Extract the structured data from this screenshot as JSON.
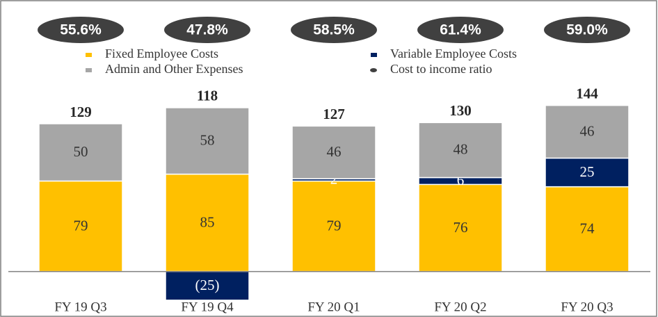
{
  "chart_data": {
    "type": "stacked_bar",
    "categories": [
      "FY 19 Q3",
      "FY 19 Q4",
      "FY 20 Q1",
      "FY 20 Q2",
      "FY 20 Q3"
    ],
    "series": [
      {
        "name": "Fixed Employee Costs",
        "color": "#ffc000",
        "values": [
          79,
          85,
          79,
          76,
          74
        ]
      },
      {
        "name": "Variable Employee Costs",
        "color": "#002060",
        "values": [
          null,
          -25,
          2,
          6,
          25
        ],
        "value_labels": [
          null,
          "(25)",
          "2",
          "6",
          "25"
        ]
      },
      {
        "name": "Admin and Other Expenses",
        "color": "#a6a6a6",
        "values": [
          50,
          58,
          46,
          48,
          46
        ]
      }
    ],
    "totals": [
      129,
      118,
      127,
      130,
      144
    ],
    "ratio": {
      "name": "Cost to income ratio",
      "color": "#404040",
      "values": [
        55.6,
        47.8,
        58.5,
        61.4,
        59.0
      ],
      "value_labels": [
        "55.6%",
        "47.8%",
        "58.5%",
        "61.4%",
        "59.0%"
      ]
    },
    "ylim": [
      -30,
      200
    ]
  }
}
